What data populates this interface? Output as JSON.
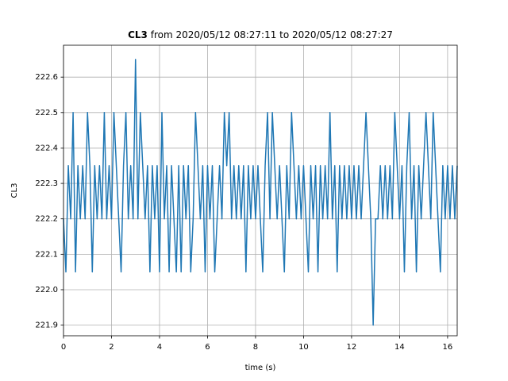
{
  "chart_data": {
    "type": "line",
    "title": {
      "name": "CL3",
      "text": "from 2020/05/12 08:27:11 to 2020/05/12 08:27:27"
    },
    "xlabel": "time (s)",
    "ylabel": "CL3",
    "xlim": [
      0,
      16.4
    ],
    "ylim": [
      221.87,
      222.69
    ],
    "xticks": [
      0,
      2,
      4,
      6,
      8,
      10,
      12,
      14,
      16
    ],
    "yticks": [
      221.9,
      {
        "value": 222,
        "label": "222.0"
      },
      222.1,
      222.2,
      222.3,
      222.4,
      222.5,
      222.6
    ],
    "grid": true,
    "x": [
      0,
      0.1,
      0.2,
      0.3,
      0.4,
      0.5,
      0.6,
      0.7,
      0.8,
      0.9,
      1,
      1.1,
      1.2,
      1.3,
      1.4,
      1.5,
      1.6,
      1.7,
      1.8,
      1.9,
      2,
      2.1,
      2.2,
      2.3,
      2.4,
      2.5,
      2.6,
      2.7,
      2.8,
      2.9,
      3,
      3.1,
      3.2,
      3.3,
      3.4,
      3.5,
      3.6,
      3.7,
      3.8,
      3.9,
      4,
      4.1,
      4.2,
      4.3,
      4.4,
      4.5,
      4.6,
      4.7,
      4.8,
      4.9,
      5,
      5.1,
      5.2,
      5.3,
      5.4,
      5.5,
      5.6,
      5.7,
      5.8,
      5.9,
      6,
      6.1,
      6.2,
      6.3,
      6.4,
      6.5,
      6.6,
      6.7,
      6.8,
      6.9,
      7,
      7.1,
      7.2,
      7.3,
      7.4,
      7.5,
      7.6,
      7.7,
      7.8,
      7.9,
      8,
      8.1,
      8.2,
      8.3,
      8.4,
      8.5,
      8.6,
      8.7,
      8.8,
      8.9,
      9,
      9.1,
      9.2,
      9.3,
      9.4,
      9.5,
      9.6,
      9.7,
      9.8,
      9.9,
      10,
      10.1,
      10.2,
      10.3,
      10.4,
      10.5,
      10.6,
      10.7,
      10.8,
      10.9,
      11,
      11.1,
      11.2,
      11.3,
      11.4,
      11.5,
      11.6,
      11.7,
      11.8,
      11.9,
      12,
      12.1,
      12.2,
      12.3,
      12.4,
      12.5,
      12.6,
      12.7,
      12.8,
      12.9,
      13,
      13.1,
      13.2,
      13.3,
      13.4,
      13.5,
      13.6,
      13.7,
      13.8,
      13.9,
      14,
      14.1,
      14.2,
      14.3,
      14.4,
      14.5,
      14.6,
      14.7,
      14.8,
      14.9,
      15,
      15.1,
      15.2,
      15.3,
      15.4,
      15.5,
      15.6,
      15.7,
      15.8,
      15.9,
      16,
      16.1,
      16.2,
      16.3,
      16.4
    ],
    "series": [
      {
        "name": "CL3",
        "color": "#1f77b4",
        "values": [
          222.2,
          222.05,
          222.35,
          222.2,
          222.5,
          222.05,
          222.35,
          222.2,
          222.35,
          222.2,
          222.5,
          222.35,
          222.05,
          222.35,
          222.2,
          222.35,
          222.2,
          222.5,
          222.2,
          222.35,
          222.2,
          222.5,
          222.35,
          222.2,
          222.05,
          222.35,
          222.5,
          222.2,
          222.35,
          222.2,
          222.65,
          222.2,
          222.5,
          222.35,
          222.2,
          222.35,
          222.05,
          222.35,
          222.2,
          222.35,
          222.05,
          222.5,
          222.2,
          222.35,
          222.05,
          222.35,
          222.2,
          222.05,
          222.35,
          222.05,
          222.35,
          222.2,
          222.35,
          222.05,
          222.2,
          222.5,
          222.35,
          222.2,
          222.35,
          222.05,
          222.35,
          222.2,
          222.35,
          222.05,
          222.2,
          222.35,
          222.2,
          222.5,
          222.35,
          222.5,
          222.2,
          222.35,
          222.2,
          222.35,
          222.2,
          222.35,
          222.05,
          222.35,
          222.2,
          222.35,
          222.2,
          222.35,
          222.2,
          222.05,
          222.35,
          222.5,
          222.2,
          222.5,
          222.35,
          222.2,
          222.35,
          222.2,
          222.05,
          222.35,
          222.2,
          222.5,
          222.35,
          222.2,
          222.35,
          222.2,
          222.35,
          222.2,
          222.05,
          222.35,
          222.2,
          222.35,
          222.05,
          222.35,
          222.2,
          222.35,
          222.2,
          222.5,
          222.2,
          222.35,
          222.05,
          222.35,
          222.2,
          222.35,
          222.2,
          222.35,
          222.2,
          222.35,
          222.2,
          222.35,
          222.2,
          222.35,
          222.5,
          222.35,
          222.2,
          221.9,
          222.2,
          222.2,
          222.35,
          222.2,
          222.35,
          222.2,
          222.35,
          222.2,
          222.5,
          222.35,
          222.2,
          222.35,
          222.05,
          222.35,
          222.5,
          222.2,
          222.35,
          222.05,
          222.35,
          222.2,
          222.35,
          222.5,
          222.35,
          222.2,
          222.5,
          222.35,
          222.2,
          222.05,
          222.35,
          222.2,
          222.35,
          222.2,
          222.35,
          222.2,
          222.35
        ]
      }
    ]
  }
}
